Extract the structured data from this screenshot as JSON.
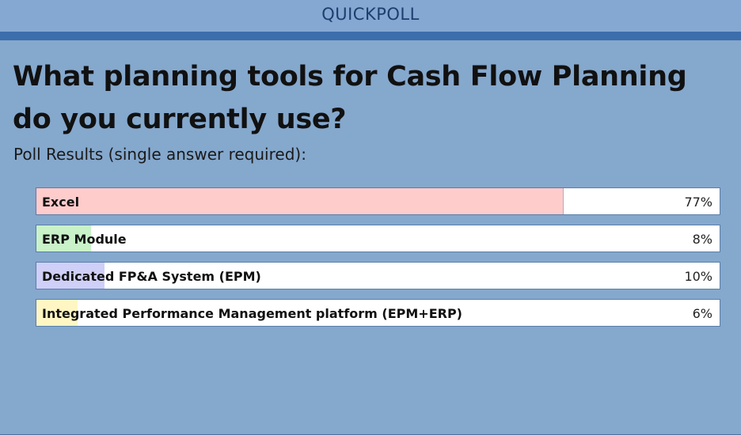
{
  "window": {
    "title": "QUICKPOLL"
  },
  "poll": {
    "question": "What planning tools for Cash Flow Planning do you currently use?",
    "subtitle": "Poll Results (single answer required):",
    "options": [
      {
        "label": "Excel",
        "percent_text": "77%",
        "percent": 77,
        "color": "#ffcccc"
      },
      {
        "label": "ERP Module",
        "percent_text": "8%",
        "percent": 8,
        "color": "#c9f2c9"
      },
      {
        "label": "Dedicated FP&A System (EPM)",
        "percent_text": "10%",
        "percent": 10,
        "color": "#cfcff7"
      },
      {
        "label": "Integrated Performance Management platform (EPM+ERP)",
        "percent_text": "6%",
        "percent": 6,
        "color": "#fff6c4"
      }
    ]
  }
}
